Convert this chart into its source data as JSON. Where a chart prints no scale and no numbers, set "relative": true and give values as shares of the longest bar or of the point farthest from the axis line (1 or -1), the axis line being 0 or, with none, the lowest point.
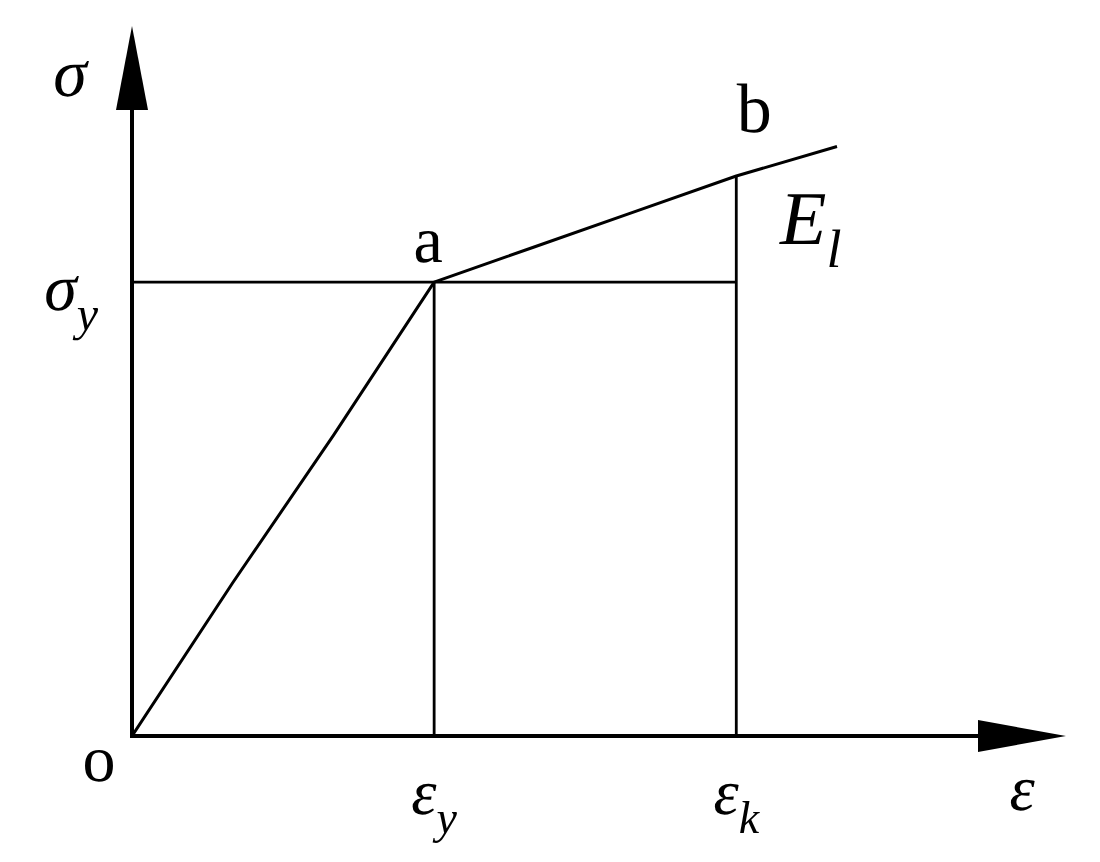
{
  "chart_data": {
    "type": "line",
    "xlabel": "ε",
    "ylabel": "σ",
    "relative": true,
    "marker": "none",
    "tick_labels": "x",
    "categories": [
      null,
      null,
      null,
      "ε$_{y}$",
      null,
      null,
      "ε$_{k}$",
      null
    ],
    "series": [
      {
        "color": "#000000",
        "values": [
          0,
          0.26,
          0.51,
          0.77,
          0.83,
          0.89,
          0.95,
          1
        ]
      },
      {
        "color": "#000000",
        "values": [
          0.77,
          0.77,
          0.77,
          0.77,
          0.77,
          0.77,
          0.77,
          null
        ]
      },
      {
        "color": "#000000",
        "x": [
          "ε$_{y}$",
          "ε$_{y}$"
        ],
        "values": [
          0,
          0.77
        ]
      },
      {
        "color": "#000000",
        "x": [
          "ε$_{k}$",
          "ε$_{k}$"
        ],
        "values": [
          0,
          0.95
        ]
      }
    ],
    "annotations": [
      "o",
      {
        "text": "a",
        "x": "ε$_{y}$",
        "y": 0.77
      },
      {
        "text": "b",
        "x": "ε$_{k}$",
        "y": 0.95
      },
      "E$_{l}$",
      "σ$_{y}$"
    ]
  }
}
